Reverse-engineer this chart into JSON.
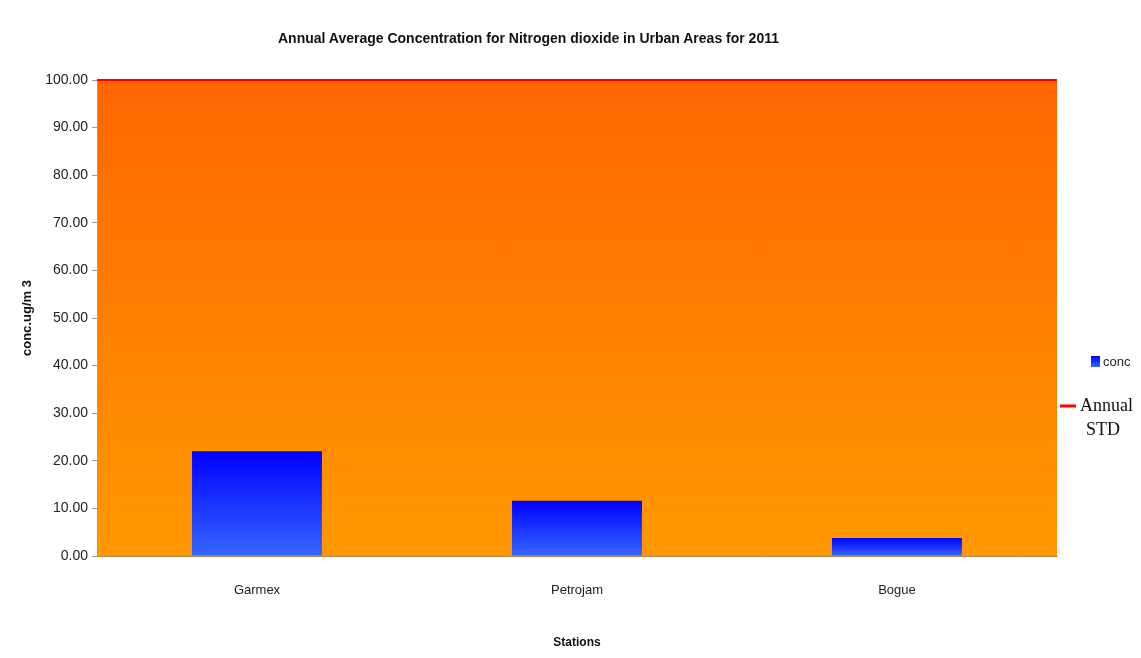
{
  "chart_data": {
    "type": "bar",
    "title": "Annual Average Concentration for Nitrogen dioxide in Urban Areas for 2011",
    "xlabel": "Stations",
    "ylabel": "conc.ug/m 3",
    "categories": [
      "Garmex",
      "Petrojam",
      "Bogue"
    ],
    "series": [
      {
        "name": "conc",
        "color": "#1a33ff",
        "values": [
          22,
          11.6,
          3.8
        ]
      }
    ],
    "ylim": [
      0,
      100
    ],
    "yticks": [
      {
        "value": 0,
        "label": "0.00"
      },
      {
        "value": 10,
        "label": "10.00"
      },
      {
        "value": 20,
        "label": "20.00"
      },
      {
        "value": 30,
        "label": "30.00"
      },
      {
        "value": 40,
        "label": "40.00"
      },
      {
        "value": 50,
        "label": "50.00"
      },
      {
        "value": 60,
        "label": "60.00"
      },
      {
        "value": 70,
        "label": "70.00"
      },
      {
        "value": 80,
        "label": "80.00"
      },
      {
        "value": 90,
        "label": "90.00"
      },
      {
        "value": 100,
        "label": "100.00"
      }
    ],
    "legend": "right",
    "ref_lines": [
      {
        "axis": "y",
        "value": 100,
        "label": "Annual STD",
        "color": "#ff0000"
      }
    ]
  }
}
